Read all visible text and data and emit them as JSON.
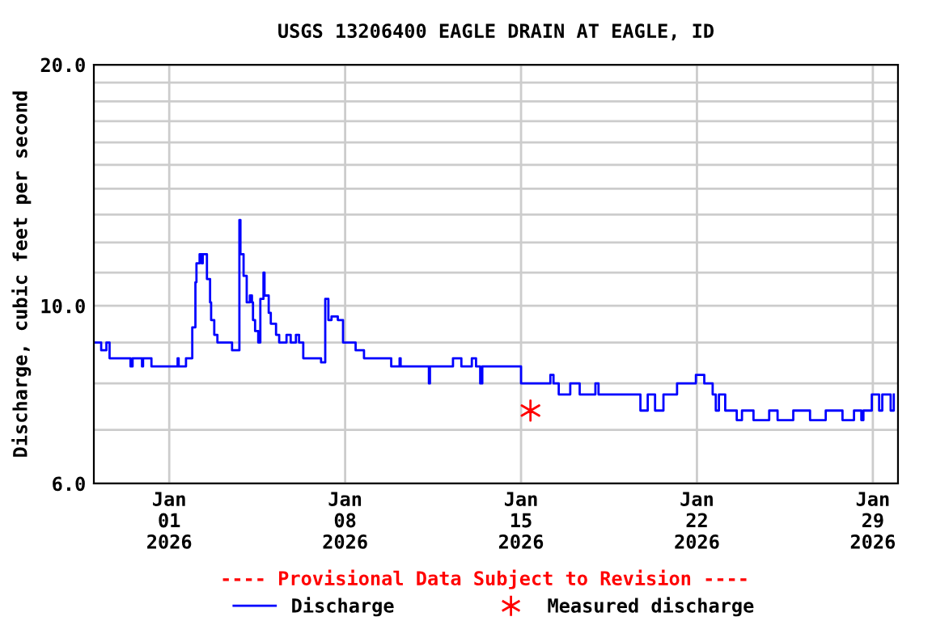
{
  "chart_data": {
    "type": "step",
    "title": "USGS 13206400 EAGLE DRAIN AT EAGLE, ID",
    "ylabel": "Discharge, cubic feet per second",
    "log": "y",
    "grid": true,
    "legend": "bottom",
    "line_style": "solid",
    "xlim": [
      "2025-12-29T00:00",
      "2026-01-30T00:00"
    ],
    "xticks": [
      {
        "value": "2026-01-01",
        "label": "Jan\n01\n2026"
      },
      {
        "value": "2026-01-08",
        "label": "Jan\n08\n2026"
      },
      {
        "value": "2026-01-15",
        "label": "Jan\n15\n2026"
      },
      {
        "value": "2026-01-22",
        "label": "Jan\n22\n2026"
      },
      {
        "value": "2026-01-29",
        "label": "Jan\n29\n2026"
      }
    ],
    "ylim": [
      6,
      20
    ],
    "yticks": [
      {
        "value": 6,
        "label": "6.0"
      },
      {
        "value": 7,
        "label": null
      },
      {
        "value": 8,
        "label": null
      },
      {
        "value": 9,
        "label": null
      },
      {
        "value": 10,
        "label": "10.0"
      },
      {
        "value": 11,
        "label": null
      },
      {
        "value": 12,
        "label": null
      },
      {
        "value": 13,
        "label": null
      },
      {
        "value": 14,
        "label": null
      },
      {
        "value": 15,
        "label": null
      },
      {
        "value": 16,
        "label": null
      },
      {
        "value": 17,
        "label": null
      },
      {
        "value": 18,
        "label": null
      },
      {
        "value": 19,
        "label": null
      },
      {
        "value": 20,
        "label": "20.0"
      }
    ],
    "annotations": [
      "---- Provisional Data Subject to Revision ----"
    ],
    "series": [
      {
        "name": "Discharge",
        "color": "#0000ff",
        "marker": "none",
        "x": [
          "2025-12-29T00:00",
          "2025-12-29T07:00",
          "2025-12-29T12:00",
          "2025-12-29T15:00",
          "2025-12-30T11:00",
          "2025-12-30T13:00",
          "2025-12-30T22:00",
          "2025-12-30T23:00",
          "2025-12-31T07:00",
          "2026-01-01T08:00",
          "2026-01-01T09:00",
          "2026-01-01T16:00",
          "2026-01-01T22:00",
          "2026-01-02T01:00",
          "2026-01-02T02:00",
          "2026-01-02T05:00",
          "2026-01-02T07:00",
          "2026-01-02T08:00",
          "2026-01-02T12:00",
          "2026-01-02T15:00",
          "2026-01-02T16:00",
          "2026-01-02T19:00",
          "2026-01-02T22:00",
          "2026-01-03T12:00",
          "2026-01-03T19:00",
          "2026-01-03T20:00",
          "2026-01-03T23:00",
          "2026-01-04T02:00",
          "2026-01-04T05:00",
          "2026-01-04T07:00",
          "2026-01-04T08:00",
          "2026-01-04T10:00",
          "2026-01-04T13:00",
          "2026-01-04T15:00",
          "2026-01-04T18:00",
          "2026-01-04T19:00",
          "2026-01-04T23:00",
          "2026-01-05T01:00",
          "2026-01-05T06:00",
          "2026-01-05T09:00",
          "2026-01-05T16:00",
          "2026-01-05T20:00",
          "2026-01-06T01:00",
          "2026-01-06T04:00",
          "2026-01-06T08:00",
          "2026-01-07T01:00",
          "2026-01-07T05:00",
          "2026-01-07T08:00",
          "2026-01-07T11:00",
          "2026-01-07T17:00",
          "2026-01-07T22:00",
          "2026-01-08T10:00",
          "2026-01-08T18:00",
          "2026-01-09T20:00",
          "2026-01-10T04:00",
          "2026-01-10T05:00",
          "2026-01-11T08:00",
          "2026-01-11T09:00",
          "2026-01-12T07:00",
          "2026-01-12T15:00",
          "2026-01-13T01:00",
          "2026-01-13T05:00",
          "2026-01-13T09:00",
          "2026-01-13T11:00",
          "2026-01-15T00:00",
          "2026-01-16T04:00",
          "2026-01-16T07:00",
          "2026-01-16T12:00",
          "2026-01-16T23:00",
          "2026-01-17T08:00",
          "2026-01-17T23:00",
          "2026-01-18T02:00",
          "2026-01-19T18:00",
          "2026-01-20T01:00",
          "2026-01-20T08:00",
          "2026-01-20T16:00",
          "2026-01-21T05:00",
          "2026-01-21T23:00",
          "2026-01-22T07:00",
          "2026-01-22T15:00",
          "2026-01-22T18:00",
          "2026-01-22T21:00",
          "2026-01-23T03:00",
          "2026-01-23T14:00",
          "2026-01-23T19:00",
          "2026-01-24T06:00",
          "2026-01-24T21:00",
          "2026-01-25T05:00",
          "2026-01-25T20:00",
          "2026-01-26T12:00",
          "2026-01-27T03:00",
          "2026-01-27T19:00",
          "2026-01-28T06:00",
          "2026-01-28T13:00",
          "2026-01-28T15:00",
          "2026-01-28T23:00",
          "2026-01-29T06:00",
          "2026-01-29T09:00",
          "2026-01-29T17:00",
          "2026-01-29T20:00"
        ],
        "values": [
          9.0,
          8.8,
          9.0,
          8.6,
          8.4,
          8.6,
          8.4,
          8.6,
          8.4,
          8.6,
          8.4,
          8.6,
          9.4,
          10.7,
          11.3,
          11.6,
          11.3,
          11.6,
          10.8,
          10.1,
          9.6,
          9.2,
          9.0,
          8.8,
          12.8,
          11.6,
          10.9,
          10.1,
          10.3,
          10.1,
          9.6,
          9.3,
          9.0,
          10.2,
          11.0,
          10.3,
          9.8,
          9.5,
          9.2,
          9.0,
          9.2,
          9.0,
          9.2,
          9.0,
          8.6,
          8.5,
          10.2,
          9.6,
          9.7,
          9.6,
          9.0,
          8.8,
          8.6,
          8.4,
          8.6,
          8.4,
          8.0,
          8.4,
          8.6,
          8.4,
          8.6,
          8.4,
          8.0,
          8.4,
          8.0,
          8.2,
          8.0,
          7.75,
          8.0,
          7.75,
          8.0,
          7.75,
          7.4,
          7.75,
          7.4,
          7.75,
          8.0,
          8.2,
          8.0,
          7.75,
          7.4,
          7.75,
          7.4,
          7.2,
          7.4,
          7.2,
          7.4,
          7.2,
          7.4,
          7.2,
          7.4,
          7.2,
          7.4,
          7.2,
          7.4,
          7.75,
          7.4,
          7.75,
          7.4,
          7.75
        ]
      },
      {
        "name": "Measured discharge",
        "type": "scatter",
        "color": "#ff0000",
        "marker": "cross",
        "x": [
          "2026-01-15T09:00"
        ],
        "values": [
          7.4
        ]
      }
    ]
  }
}
